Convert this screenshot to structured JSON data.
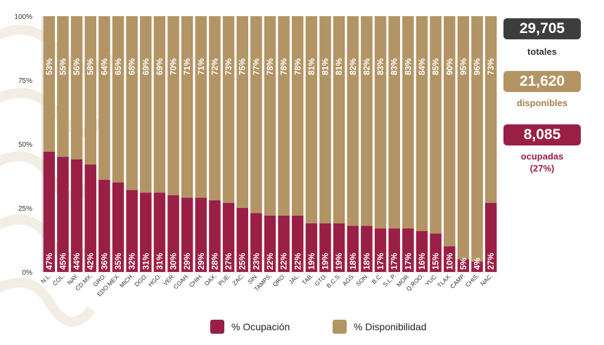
{
  "colors": {
    "ocupacion": "#9a1f46",
    "disponibilidad": "#b39464",
    "dark": "#3d3d3d"
  },
  "summary": {
    "totales": {
      "value": "29,705",
      "label": "totales"
    },
    "disponibles": {
      "value": "21,620",
      "label": "disponibles"
    },
    "ocupadas": {
      "value": "8,085",
      "label": "ocupadas",
      "pct": "(27%)"
    }
  },
  "legend": {
    "ocupacion": "% Ocupación",
    "disponibilidad": "% Disponibilidad"
  },
  "chart_data": {
    "type": "bar",
    "stacked": true,
    "ylim": [
      0,
      100
    ],
    "yticks": [
      "0%",
      "25%",
      "50%",
      "75%",
      "100%"
    ],
    "categories": [
      "N.L.",
      "COL.",
      "NAY.",
      "CD.MX.",
      "GRO.",
      "EDO.MEX.",
      "MICH.",
      "DGO.",
      "HGO.",
      "VER.",
      "COAH.",
      "CHIH.",
      "OAX.",
      "PUE.",
      "ZAC.",
      "SIN.",
      "TAMPS.",
      "QRO.",
      "JAL.",
      "TAB.",
      "GTO.",
      "B.C.S.",
      "AGS.",
      "SON.",
      "B.C.",
      "S.L.P.",
      "MOR.",
      "Q.ROO.",
      "YUC.",
      "TLAX.",
      "CAMP.",
      "CHIS.",
      "NAC."
    ],
    "series": [
      {
        "name": "% Ocupación",
        "values": [
          47,
          45,
          44,
          42,
          36,
          35,
          32,
          31,
          31,
          30,
          29,
          29,
          28,
          27,
          25,
          23,
          22,
          22,
          22,
          19,
          19,
          19,
          18,
          18,
          17,
          17,
          17,
          16,
          15,
          10,
          5,
          4,
          27
        ]
      },
      {
        "name": "% Disponibilidad",
        "values": [
          53,
          55,
          56,
          58,
          64,
          65,
          68,
          69,
          69,
          70,
          71,
          71,
          72,
          73,
          75,
          77,
          78,
          78,
          78,
          81,
          81,
          81,
          82,
          82,
          83,
          83,
          83,
          84,
          85,
          90,
          95,
          96,
          73
        ]
      }
    ]
  }
}
